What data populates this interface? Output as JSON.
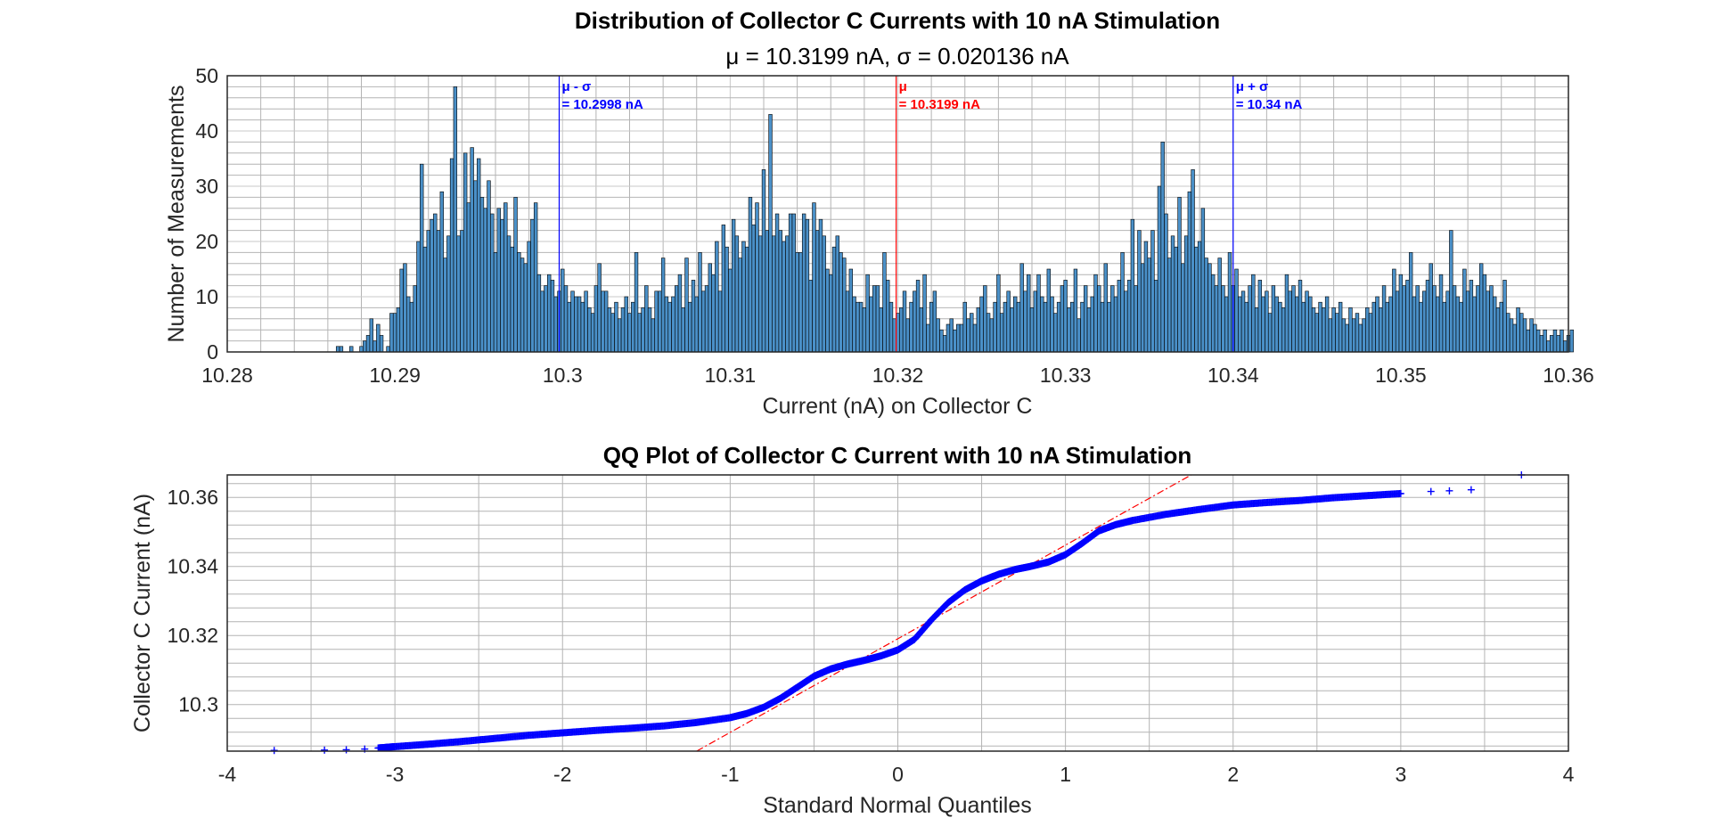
{
  "chart_data": [
    {
      "type": "bar",
      "title": "Distribution of Collector C Currents with 10 nA Stimulation",
      "subtitle": "μ = 10.3199 nA, σ = 0.020136 nA",
      "xlabel": "Current (nA) on Collector C",
      "ylabel": "Number of Measurements",
      "xlim": [
        10.28,
        10.36
      ],
      "ylim": [
        0,
        50
      ],
      "xticks": [
        "10.28",
        "10.29",
        "10.3",
        "10.31",
        "10.32",
        "10.33",
        "10.34",
        "10.35",
        "10.36"
      ],
      "yticks": [
        "0",
        "10",
        "20",
        "30",
        "40",
        "50"
      ],
      "grid": true,
      "bar_color": "#4a90c8",
      "bar_edge_color": "#000000",
      "bin_start": 10.2865,
      "bin_width": 0.0002,
      "counts": [
        1,
        1,
        0,
        0,
        1,
        0,
        0,
        1,
        2,
        3,
        6,
        2,
        5,
        3,
        0,
        1,
        7,
        7,
        8,
        15,
        16,
        10,
        9,
        12,
        20,
        34,
        19,
        22,
        24,
        25,
        22,
        29,
        17,
        21,
        35,
        48,
        21,
        22,
        36,
        27,
        37,
        31,
        35,
        28,
        26,
        31,
        25,
        18,
        26,
        24,
        27,
        21,
        19,
        28,
        18,
        17,
        16,
        20,
        24,
        27,
        14,
        11,
        12,
        14,
        13,
        10,
        11,
        15,
        12,
        9,
        11,
        10,
        10,
        9,
        11,
        8,
        7,
        12,
        16,
        11,
        11,
        8,
        7,
        9,
        6,
        8,
        10,
        7,
        9,
        18,
        7,
        8,
        12,
        8,
        6,
        11,
        11,
        17,
        10,
        9,
        10,
        12,
        14,
        8,
        17,
        9,
        13,
        10,
        18,
        11,
        12,
        16,
        14,
        20,
        11,
        23,
        19,
        15,
        24,
        21,
        17,
        20,
        19,
        28,
        23,
        27,
        21,
        33,
        22,
        43,
        21,
        25,
        22,
        20,
        21,
        25,
        25,
        18,
        18,
        25,
        24,
        13,
        27,
        22,
        24,
        21,
        15,
        14,
        19,
        21,
        18,
        17,
        11,
        15,
        10,
        9,
        9,
        8,
        14,
        10,
        12,
        12,
        8,
        18,
        13,
        9,
        6,
        7,
        8,
        11,
        6,
        9,
        11,
        13,
        8,
        14,
        5,
        9,
        11,
        6,
        4,
        3,
        5,
        6,
        4,
        5,
        5,
        9,
        6,
        7,
        5,
        8,
        10,
        12,
        7,
        6,
        9,
        14,
        7,
        9,
        11,
        8,
        10,
        9,
        16,
        11,
        14,
        8,
        11,
        14,
        10,
        9,
        15,
        10,
        7,
        9,
        12,
        13,
        8,
        9,
        15,
        6,
        9,
        12,
        8,
        10,
        14,
        12,
        9,
        16,
        9,
        12,
        10,
        13,
        18,
        11,
        13,
        24,
        12,
        22,
        16,
        20,
        17,
        22,
        13,
        30,
        38,
        25,
        17,
        21,
        19,
        28,
        16,
        21,
        29,
        33,
        19,
        20,
        26,
        17,
        16,
        14,
        12,
        17,
        12,
        10,
        18,
        12,
        15,
        10,
        11,
        9,
        12,
        14,
        8,
        13,
        10,
        11,
        7,
        12,
        10,
        9,
        8,
        14,
        11,
        12,
        10,
        13,
        9,
        11,
        10,
        8,
        7,
        9,
        8,
        10,
        6,
        8,
        7,
        9,
        6,
        5,
        8,
        6,
        7,
        5,
        6,
        8,
        7,
        9,
        10,
        8,
        12,
        9,
        10,
        15,
        11,
        14,
        12,
        13,
        18,
        10,
        12,
        9,
        11,
        13,
        16,
        12,
        10,
        14,
        9,
        11,
        22,
        12,
        10,
        9,
        15,
        11,
        13,
        10,
        12,
        16,
        14,
        11,
        12,
        10,
        8,
        9,
        13,
        7,
        6,
        5,
        8,
        7,
        6,
        4,
        6,
        5,
        4,
        3,
        4,
        2,
        3,
        4,
        3,
        4,
        2,
        3,
        4
      ],
      "annotations": [
        {
          "x": 10.2998,
          "lines": [
            "μ - σ",
            "= 10.2998 nA"
          ],
          "color": "#0000ff"
        },
        {
          "x": 10.3199,
          "lines": [
            "μ",
            "= 10.3199 nA"
          ],
          "color": "#ff0000"
        },
        {
          "x": 10.34,
          "lines": [
            "μ + σ",
            "= 10.34 nA"
          ],
          "color": "#0000ff"
        }
      ]
    },
    {
      "type": "scatter",
      "title": "QQ Plot of Collector C Current with 10 nA Stimulation",
      "xlabel": "Standard Normal Quantiles",
      "ylabel": "Collector C Current (nA)",
      "xlim": [
        -4,
        4
      ],
      "ylim": [
        10.2865,
        10.3665
      ],
      "xticks": [
        "-4",
        "-3",
        "-2",
        "-1",
        "0",
        "1",
        "2",
        "3",
        "4"
      ],
      "yticks": [
        "10.3",
        "10.32",
        "10.34",
        "10.36"
      ],
      "ytick_values": [
        10.3,
        10.32,
        10.34,
        10.36
      ],
      "grid": true,
      "marker": "+",
      "marker_color": "#0000ff",
      "reference_line": {
        "style": "dash-dot",
        "color": "#ff0000",
        "x": [
          -1.2,
          1.75
        ],
        "y": [
          10.2865,
          10.3665
        ]
      },
      "curve": {
        "x": [
          -3.1,
          -3.0,
          -2.8,
          -2.6,
          -2.4,
          -2.2,
          -2.0,
          -1.8,
          -1.6,
          -1.4,
          -1.2,
          -1.0,
          -0.9,
          -0.8,
          -0.7,
          -0.6,
          -0.5,
          -0.4,
          -0.3,
          -0.2,
          -0.1,
          0.0,
          0.1,
          0.2,
          0.3,
          0.4,
          0.5,
          0.6,
          0.7,
          0.8,
          0.9,
          1.0,
          1.1,
          1.2,
          1.3,
          1.4,
          1.6,
          1.8,
          2.0,
          2.2,
          2.4,
          2.6,
          2.8,
          3.0
        ],
        "y": [
          10.2874,
          10.2878,
          10.2885,
          10.2893,
          10.2902,
          10.2911,
          10.2918,
          10.2925,
          10.2931,
          10.2938,
          10.2948,
          10.2962,
          10.2974,
          10.2992,
          10.3018,
          10.305,
          10.3082,
          10.3103,
          10.3117,
          10.3128,
          10.3141,
          10.3158,
          10.3189,
          10.3245,
          10.3295,
          10.3332,
          10.3358,
          10.3377,
          10.3391,
          10.3401,
          10.3413,
          10.3434,
          10.3467,
          10.3503,
          10.3521,
          10.3533,
          10.3551,
          10.3565,
          10.3578,
          10.3585,
          10.3591,
          10.3599,
          10.3605,
          10.3611
        ]
      },
      "tail_points": {
        "x": [
          -3.72,
          -3.42,
          -3.29,
          -3.18,
          3.18,
          3.29,
          3.42,
          3.72
        ],
        "y": [
          10.2867,
          10.2868,
          10.2869,
          10.2871,
          10.3617,
          10.3619,
          10.3622,
          10.3665
        ]
      }
    }
  ]
}
